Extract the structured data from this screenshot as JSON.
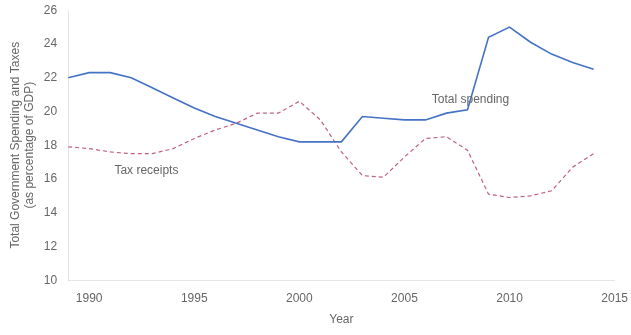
{
  "chart_data": {
    "type": "line",
    "title": "",
    "xlabel": "Year",
    "ylabel": "Total Government Spending and Taxes\n(as percentage of GDP)",
    "xlim": [
      1989,
      2015
    ],
    "ylim": [
      10,
      26
    ],
    "xticks": [
      1990,
      1995,
      2000,
      2005,
      2010,
      2015
    ],
    "yticks": [
      10,
      12,
      14,
      16,
      18,
      20,
      22,
      24,
      26
    ],
    "grid": false,
    "x": [
      1989,
      1990,
      1991,
      1992,
      1993,
      1994,
      1995,
      1996,
      1997,
      1998,
      1999,
      2000,
      2001,
      2002,
      2003,
      2004,
      2005,
      2006,
      2007,
      2008,
      2009,
      2010,
      2011,
      2012,
      2013,
      2014
    ],
    "series": [
      {
        "name": "Total spending",
        "color": "#4472C4",
        "line_style": "solid",
        "values": [
          22.0,
          22.3,
          22.3,
          22.0,
          21.4,
          20.8,
          20.2,
          19.7,
          19.3,
          18.9,
          18.5,
          18.2,
          18.2,
          18.2,
          19.7,
          19.6,
          19.5,
          19.5,
          19.9,
          20.1,
          24.4,
          25.0,
          24.1,
          23.4,
          22.9,
          22.5
        ]
      },
      {
        "name": "Tax receipts",
        "color": "#C06080",
        "line_style": "dashed",
        "values": [
          17.9,
          17.8,
          17.6,
          17.5,
          17.5,
          17.8,
          18.4,
          18.9,
          19.3,
          19.9,
          19.9,
          20.6,
          19.5,
          17.6,
          16.2,
          16.1,
          17.3,
          18.4,
          18.5,
          17.7,
          15.1,
          14.9,
          15.0,
          15.3,
          16.7,
          17.5
        ]
      }
    ],
    "annotations": [
      {
        "text": "Total spending",
        "x": 2006.3,
        "y": 20.5
      },
      {
        "text": "Tax receipts",
        "x": 1991.2,
        "y": 16.3
      }
    ]
  }
}
